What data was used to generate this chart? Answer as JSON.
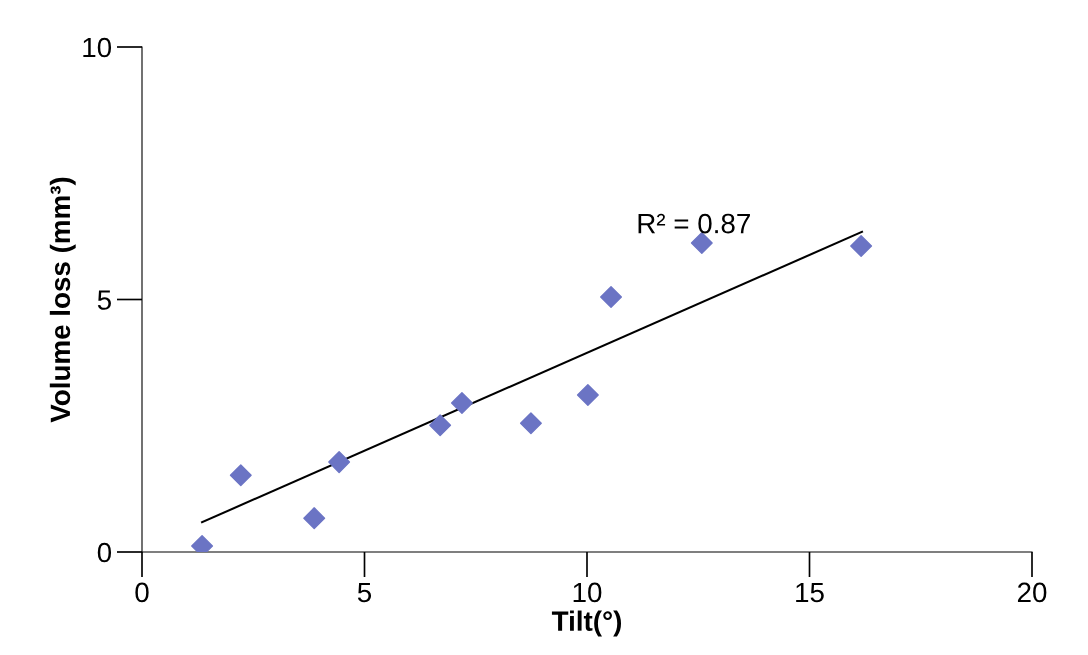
{
  "chart_data": {
    "type": "scatter",
    "xlabel": "Tilt(°)",
    "ylabel": "Volume loss (mm³)",
    "xlim": [
      0,
      20
    ],
    "ylim": [
      0,
      10
    ],
    "xticks": [
      0,
      5,
      10,
      15,
      20
    ],
    "yticks": [
      0,
      5,
      10
    ],
    "grid": false,
    "legend": false,
    "marker": "diamond",
    "series": [
      {
        "color": "#6b74c4",
        "x": [
          1.35,
          2.22,
          3.87,
          4.43,
          6.7,
          7.19,
          8.74,
          10.02,
          10.54,
          12.58,
          16.16
        ],
        "values": [
          0.12,
          1.52,
          0.67,
          1.78,
          2.51,
          2.95,
          2.55,
          3.11,
          5.05,
          6.12,
          6.06
        ]
      },
      {
        "type": "line",
        "marker": "none",
        "color": "#000000",
        "x": [
          1.35,
          16.18
        ],
        "values": [
          0.59,
          6.34
        ]
      }
    ],
    "annotations": [
      {
        "text": "R² = 0.87",
        "x": 12.4,
        "y": 6.2
      }
    ]
  }
}
